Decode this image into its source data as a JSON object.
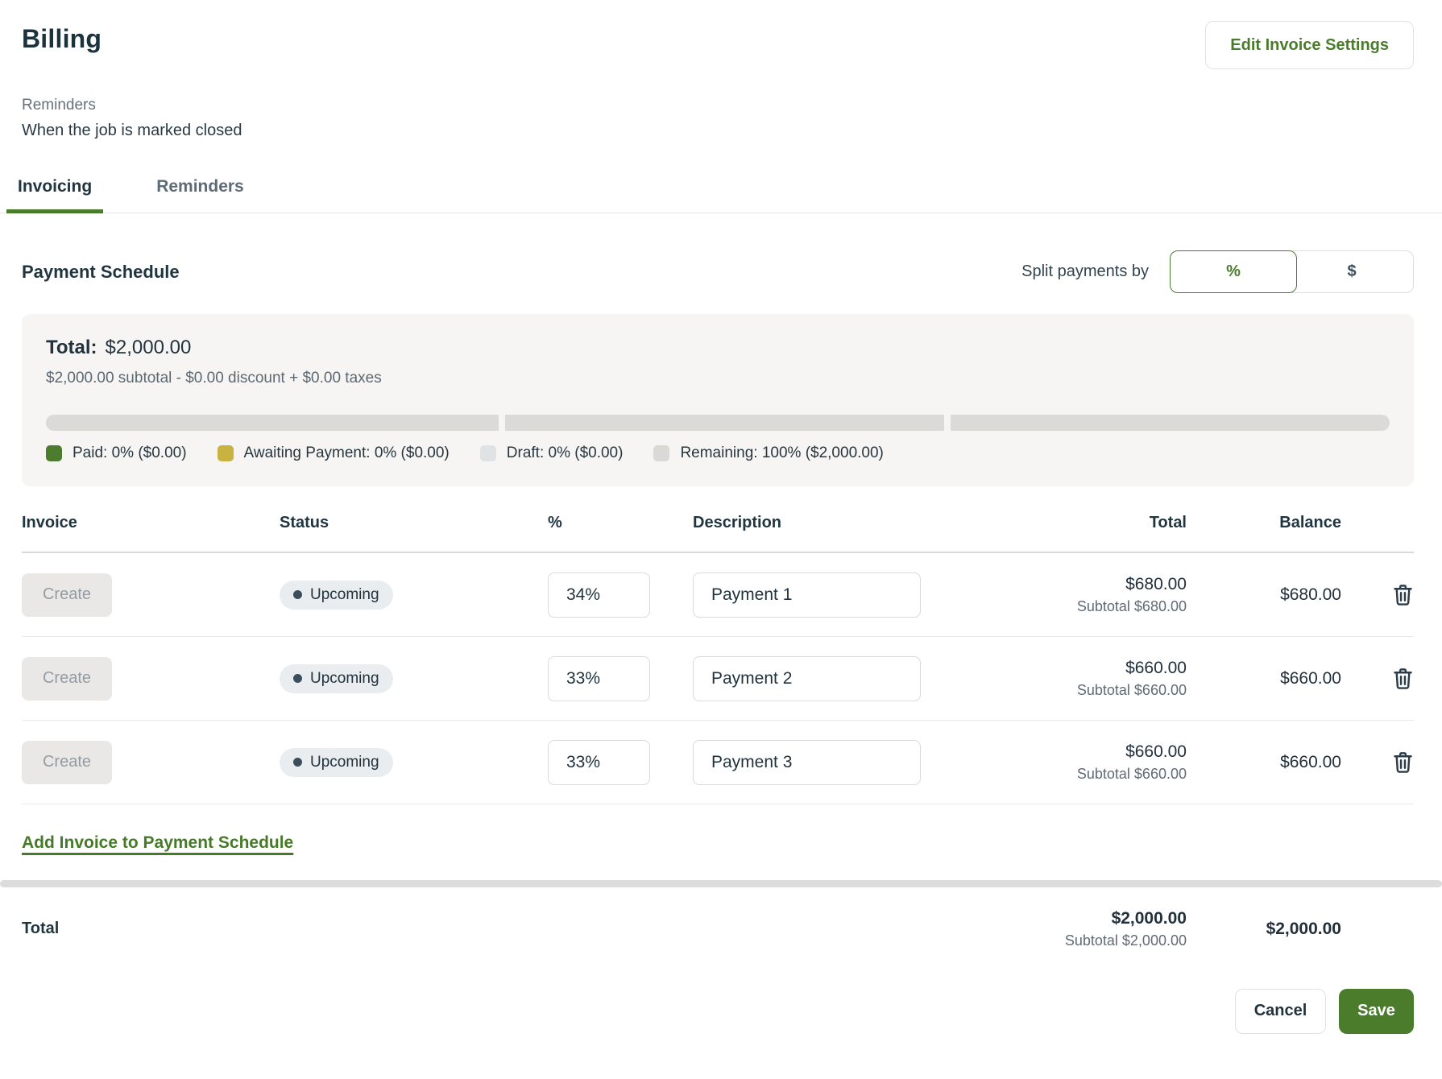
{
  "page": {
    "title": "Billing"
  },
  "header": {
    "edit_settings_label": "Edit Invoice Settings",
    "reminders_label": "Reminders",
    "reminders_value": "When the job is marked closed"
  },
  "tabs": [
    {
      "label": "Invoicing",
      "active": true
    },
    {
      "label": "Reminders",
      "active": false
    }
  ],
  "payment_schedule": {
    "heading": "Payment Schedule",
    "split_label": "Split payments by",
    "split_options": [
      {
        "label": "%",
        "selected": true
      },
      {
        "label": "$",
        "selected": false
      }
    ],
    "summary": {
      "total_label": "Total:",
      "total_value": "$2,000.00",
      "breakdown": "$2,000.00 subtotal - $0.00 discount + $0.00 taxes",
      "bar_segments": [
        34,
        33,
        33
      ],
      "legend": [
        {
          "label": "Paid: 0% ($0.00)",
          "color": "#4c7d2f"
        },
        {
          "label": "Awaiting Payment: 0% ($0.00)",
          "color": "#c9b23f"
        },
        {
          "label": "Draft: 0% ($0.00)",
          "color": "#dfe3e6"
        },
        {
          "label": "Remaining: 100% ($2,000.00)",
          "color": "#dbd9d6"
        }
      ]
    }
  },
  "table": {
    "headers": {
      "invoice": "Invoice",
      "status": "Status",
      "percent": "%",
      "description": "Description",
      "total": "Total",
      "balance": "Balance"
    },
    "rows": [
      {
        "action": "Create",
        "status": "Upcoming",
        "percent": "34%",
        "description": "Payment 1",
        "total": "$680.00",
        "subtotal": "Subtotal $680.00",
        "balance": "$680.00"
      },
      {
        "action": "Create",
        "status": "Upcoming",
        "percent": "33%",
        "description": "Payment 2",
        "total": "$660.00",
        "subtotal": "Subtotal $660.00",
        "balance": "$660.00"
      },
      {
        "action": "Create",
        "status": "Upcoming",
        "percent": "33%",
        "description": "Payment 3",
        "total": "$660.00",
        "subtotal": "Subtotal $660.00",
        "balance": "$660.00"
      }
    ],
    "add_link_label": "Add Invoice to Payment Schedule",
    "footer": {
      "label": "Total",
      "total": "$2,000.00",
      "subtotal": "Subtotal $2,000.00",
      "balance": "$2,000.00"
    }
  },
  "actions": {
    "cancel_label": "Cancel",
    "save_label": "Save"
  },
  "colors": {
    "accent_green": "#4a7c2d",
    "save_bg": "#4a7c2c",
    "paid": "#4c7d2f",
    "awaiting": "#c9b23f",
    "draft": "#dfe3e6",
    "remaining": "#dbd9d6",
    "bar_segment": "#dcdad7",
    "card_bg": "#f6f5f3"
  }
}
